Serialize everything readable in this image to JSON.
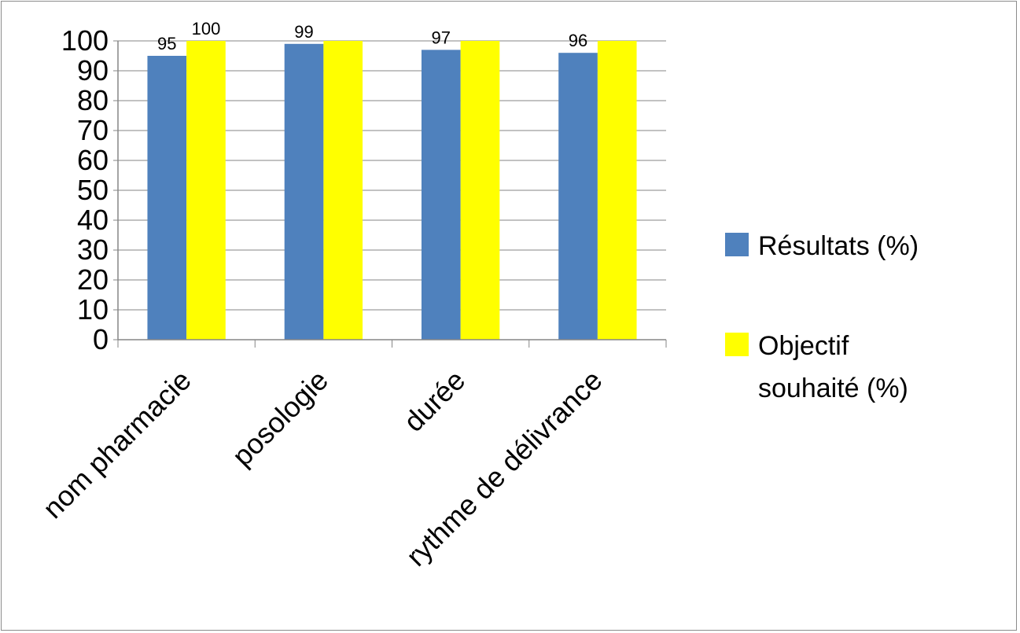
{
  "chart_data": {
    "type": "bar",
    "title": "",
    "xlabel": "",
    "ylabel": "",
    "categories": [
      "nom pharmacie",
      "posologie",
      "durée",
      "rythme de délivrance"
    ],
    "series": [
      {
        "name": "Résultats (%)",
        "color": "#4F81BD",
        "values": [
          95,
          99,
          97,
          96
        ],
        "data_labels": [
          "95",
          "99",
          "97",
          "96"
        ]
      },
      {
        "name": "Objectif souhaité (%)",
        "color": "#FFFF00",
        "values": [
          100,
          100,
          100,
          100
        ],
        "data_labels": [
          "100",
          "",
          "",
          ""
        ]
      }
    ],
    "ylim": [
      0,
      100
    ],
    "yticks": [
      "0",
      "10",
      "20",
      "30",
      "40",
      "50",
      "60",
      "70",
      "80",
      "90",
      "100"
    ],
    "grid": true,
    "legend_position": "right",
    "legend_lines": [
      [
        "Résultats (%)"
      ],
      [
        "Objectif",
        "souhaité (%)"
      ]
    ],
    "category_label_rotation": "diagonal"
  }
}
